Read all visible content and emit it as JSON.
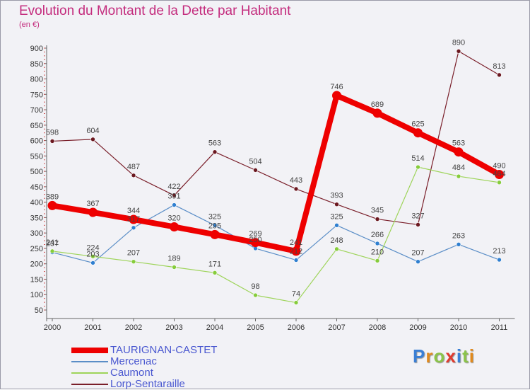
{
  "header": {
    "title": "Evolution du Montant de la Dette par Habitant",
    "unit": "(en €)"
  },
  "brand": {
    "text": "Proxiti",
    "letter_colors": [
      "#3a7fd5",
      "#e08a1e",
      "#8bc34a",
      "#e03a2e",
      "#3a7fd5",
      "#8bc34a",
      "#e08a1e"
    ]
  },
  "chart_data": {
    "type": "line",
    "x": [
      "2000",
      "2001",
      "2002",
      "2003",
      "2004",
      "2005",
      "2006",
      "2007",
      "2008",
      "2009",
      "2010",
      "2011"
    ],
    "ylim": [
      50,
      900
    ],
    "yticks": [
      50,
      100,
      150,
      200,
      250,
      300,
      350,
      400,
      450,
      500,
      550,
      600,
      650,
      700,
      750,
      800,
      850,
      900
    ],
    "grid": false,
    "legend_position": "bottom-left",
    "series": [
      {
        "name": "Lorp-Sentaraille",
        "color": "#7a1f2a",
        "marker": "#6b1820",
        "width": 1.2,
        "dot": 3,
        "values": [
          598,
          604,
          487,
          422,
          563,
          504,
          443,
          393,
          345,
          327,
          890,
          813
        ]
      },
      {
        "name": "Mercenac",
        "color": "#5b8ec7",
        "marker": "#2f7fd0",
        "width": 1.2,
        "dot": 3,
        "values": [
          237,
          203,
          317,
          391,
          325,
          250,
          212,
          325,
          266,
          207,
          263,
          213
        ],
        "labels": [
          "237",
          "203",
          "317",
          "391",
          "325",
          "250",
          "212",
          "325",
          "266",
          "207",
          "263",
          "213"
        ]
      },
      {
        "name": "Caumont",
        "color": "#9ed45a",
        "marker": "#86cc3c",
        "width": 1.2,
        "dot": 3,
        "values": [
          241,
          224,
          207,
          189,
          171,
          98,
          74,
          248,
          210,
          514,
          484,
          464
        ]
      },
      {
        "name": "TAURIGNAN-CASTET",
        "color": "#ee0000",
        "marker": "#ee0000",
        "width": 8,
        "dot": 6.5,
        "values": [
          389,
          367,
          344,
          320,
          295,
          269,
          241,
          746,
          689,
          625,
          563,
          490
        ]
      }
    ],
    "legend_order": [
      "TAURIGNAN-CASTET",
      "Mercenac",
      "Caumont",
      "Lorp-Sentaraille"
    ]
  }
}
